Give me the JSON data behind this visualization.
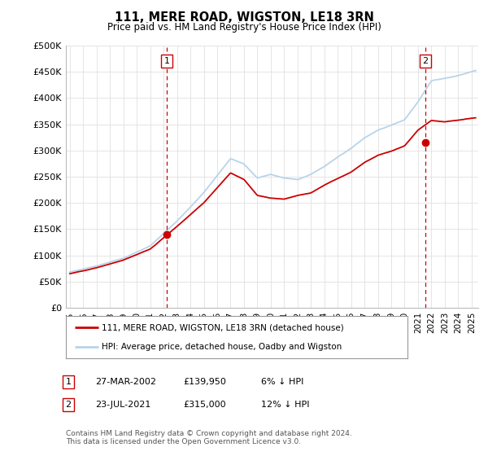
{
  "title": "111, MERE ROAD, WIGSTON, LE18 3RN",
  "subtitle": "Price paid vs. HM Land Registry's House Price Index (HPI)",
  "ylabel_ticks": [
    "£0",
    "£50K",
    "£100K",
    "£150K",
    "£200K",
    "£250K",
    "£300K",
    "£350K",
    "£400K",
    "£450K",
    "£500K"
  ],
  "ytick_values": [
    0,
    50000,
    100000,
    150000,
    200000,
    250000,
    300000,
    350000,
    400000,
    450000,
    500000
  ],
  "ylim": [
    0,
    500000
  ],
  "xlim_start": 1994.7,
  "xlim_end": 2025.5,
  "sale1_date": 2002.23,
  "sale1_price": 139950,
  "sale1_label": "1",
  "sale2_date": 2021.55,
  "sale2_price": 315000,
  "sale2_label": "2",
  "hpi_color": "#b8d4ea",
  "price_color": "#cc0000",
  "sale_marker_color": "#cc0000",
  "vline_color": "#cc0000",
  "background_color": "#ffffff",
  "grid_color": "#e0e0e0",
  "legend_line1": "111, MERE ROAD, WIGSTON, LE18 3RN (detached house)",
  "legend_line2": "HPI: Average price, detached house, Oadby and Wigston",
  "table_row1_label": "1",
  "table_row1_date": "27-MAR-2002",
  "table_row1_price": "£139,950",
  "table_row1_hpi": "6% ↓ HPI",
  "table_row2_label": "2",
  "table_row2_date": "23-JUL-2021",
  "table_row2_price": "£315,000",
  "table_row2_hpi": "12% ↓ HPI",
  "footer": "Contains HM Land Registry data © Crown copyright and database right 2024.\nThis data is licensed under the Open Government Licence v3.0.",
  "xtick_years": [
    1995,
    1996,
    1997,
    1998,
    1999,
    2000,
    2001,
    2002,
    2003,
    2004,
    2005,
    2006,
    2007,
    2008,
    2009,
    2010,
    2011,
    2012,
    2013,
    2014,
    2015,
    2016,
    2017,
    2018,
    2019,
    2020,
    2021,
    2022,
    2023,
    2024,
    2025
  ]
}
